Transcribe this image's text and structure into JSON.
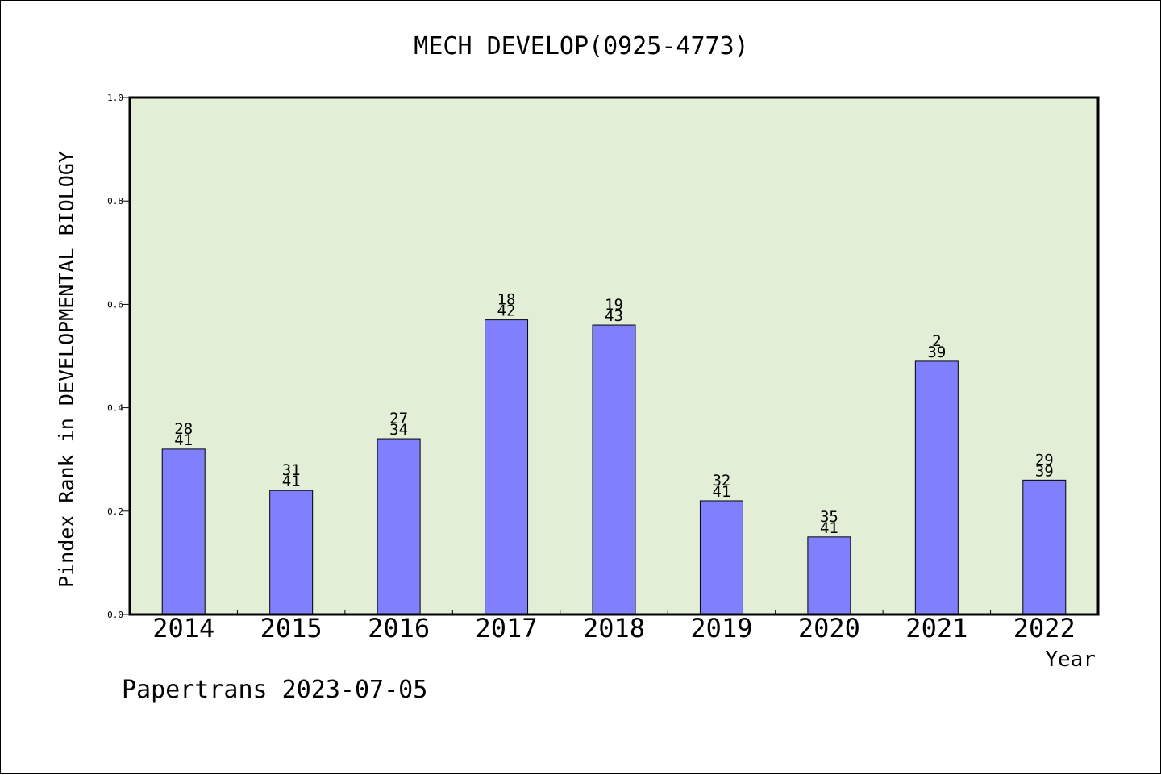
{
  "chart_data": {
    "type": "bar",
    "title": "MECH DEVELOP(0925-4773)",
    "xlabel": "Year",
    "ylabel": "Pindex Rank in DEVELOPMENTAL BIOLOGY",
    "categories": [
      "2014",
      "2015",
      "2016",
      "2017",
      "2018",
      "2019",
      "2020",
      "2021",
      "2022"
    ],
    "values": [
      0.32,
      0.24,
      0.34,
      0.57,
      0.56,
      0.22,
      0.15,
      0.49,
      0.26
    ],
    "labels_top": [
      "28",
      "31",
      "27",
      "18",
      "19",
      "32",
      "35",
      "2",
      "29"
    ],
    "labels_bottom": [
      "41",
      "41",
      "34",
      "42",
      "43",
      "41",
      "41",
      "39",
      "39"
    ],
    "ylim": [
      0,
      1.0
    ],
    "yticks": [
      "0.0",
      "0.2",
      "0.4",
      "0.6",
      "0.8",
      "1.0"
    ],
    "grid": false,
    "colors": {
      "bar": "#8080ff",
      "plot_background": "#e2efd6",
      "page_background": "#ffffff"
    }
  },
  "footer": "Papertrans 2023-07-05"
}
